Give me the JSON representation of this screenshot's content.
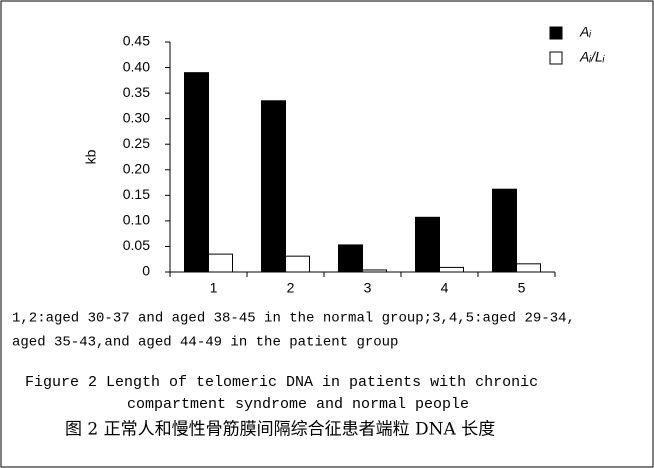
{
  "chart_data": {
    "type": "bar",
    "y_label": "kb",
    "categories": [
      "1",
      "2",
      "3",
      "4",
      "5"
    ],
    "series": [
      {
        "name": "Aᵢ",
        "color": "#000000",
        "values": [
          0.39,
          0.335,
          0.053,
          0.107,
          0.162
        ]
      },
      {
        "name": "Aᵢ/Lᵢ",
        "color": "#ffffff",
        "values": [
          0.035,
          0.031,
          0.004,
          0.009,
          0.016
        ]
      }
    ],
    "ylim": [
      0,
      0.45
    ],
    "yticks": [
      0,
      0.05,
      {
        "value": 0.1,
        "label": "0.10"
      },
      0.15,
      {
        "value": 0.2,
        "label": "0.20"
      },
      0.25,
      {
        "value": 0.3,
        "label": "0.30"
      },
      0.35,
      {
        "value": 0.4,
        "label": "0.40"
      },
      0.45
    ],
    "legend": "top-right",
    "notes": [
      "1,2:aged 30-37 and aged 38-45 in the normal group;3,4,5:aged 29-34,",
      "aged 35-43,and aged 44-49 in the patient group"
    ],
    "caption": [
      "Figure 2  Length of telomeric DNA in patients with chronic",
      "compartment syndrome and normal people"
    ],
    "caption_cn": "图 2   正常人和慢性骨筋膜间隔综合征患者端粒 DNA 长度"
  }
}
